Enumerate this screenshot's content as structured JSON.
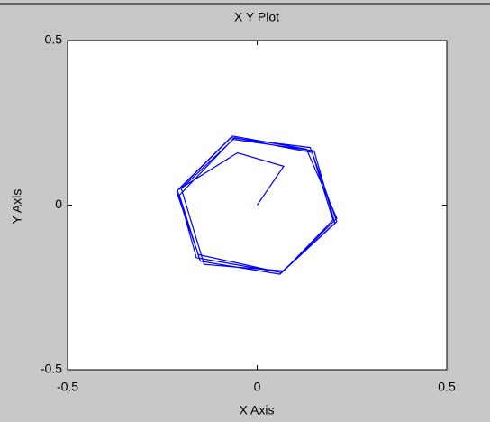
{
  "chart_data": {
    "type": "line",
    "title": "X Y Plot",
    "xlabel": "X Axis",
    "ylabel": "Y Axis",
    "color": "#0000ff",
    "x": [
      0,
      0.07,
      -0.052,
      -0.207,
      -0.065,
      0.13,
      0.21,
      0.065,
      -0.16,
      -0.21,
      -0.07,
      0.14,
      0.21,
      0.06,
      -0.15,
      -0.205,
      -0.06,
      0.145,
      0.2,
      0.07,
      -0.14,
      -0.2,
      -0.063,
      0.15,
      0.205,
      0.063,
      -0.155,
      -0.212
    ],
    "values": [
      0,
      0.118,
      0.159,
      0.047,
      0.21,
      0.17,
      -0.04,
      -0.205,
      -0.16,
      0.045,
      0.205,
      0.175,
      -0.05,
      -0.21,
      -0.17,
      0.03,
      0.205,
      0.16,
      -0.045,
      -0.2,
      -0.18,
      0.05,
      0.2,
      0.165,
      -0.055,
      -0.205,
      -0.15,
      0.04
    ],
    "xlim": [
      -0.5,
      0.5
    ],
    "ylim": [
      -0.5,
      0.5
    ],
    "xticks": [
      -0.5,
      0,
      0.5
    ],
    "yticks": [
      -0.5,
      0,
      0.5
    ]
  }
}
